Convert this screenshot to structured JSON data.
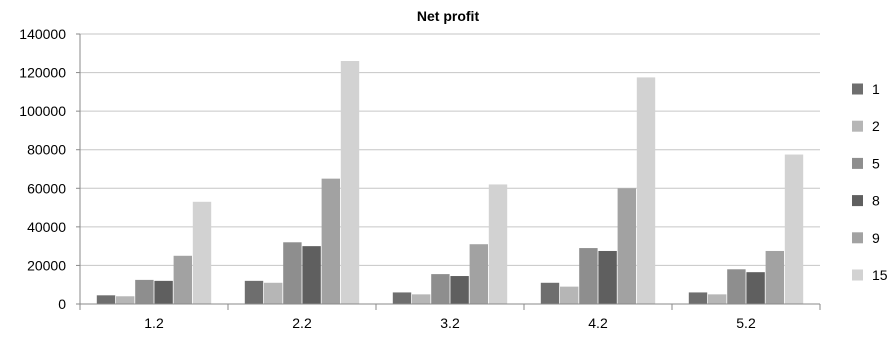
{
  "chart_data": {
    "type": "bar",
    "title": "Net profit",
    "xlabel": "",
    "ylabel": "",
    "categories": [
      "1.2",
      "2.2",
      "3.2",
      "4.2",
      "5.2"
    ],
    "ylim": [
      0,
      140000
    ],
    "yticks": [
      0,
      20000,
      40000,
      60000,
      80000,
      100000,
      120000,
      140000
    ],
    "grid": true,
    "legend": "right",
    "series": [
      {
        "name": "1",
        "color": "#6e6e6e",
        "values": [
          4500,
          12000,
          6000,
          11000,
          6000
        ]
      },
      {
        "name": "2",
        "color": "#b6b6b6",
        "values": [
          4000,
          11000,
          5000,
          9000,
          5000
        ]
      },
      {
        "name": "5",
        "color": "#8e8e8e",
        "values": [
          12500,
          32000,
          15500,
          29000,
          18000
        ]
      },
      {
        "name": "8",
        "color": "#5f5f5f",
        "values": [
          12000,
          30000,
          14500,
          27500,
          16500
        ]
      },
      {
        "name": "9",
        "color": "#a2a2a2",
        "values": [
          25000,
          65000,
          31000,
          60000,
          27500
        ]
      },
      {
        "name": "15",
        "color": "#d2d2d2",
        "values": [
          53000,
          126000,
          62000,
          117500,
          77500
        ]
      }
    ]
  }
}
